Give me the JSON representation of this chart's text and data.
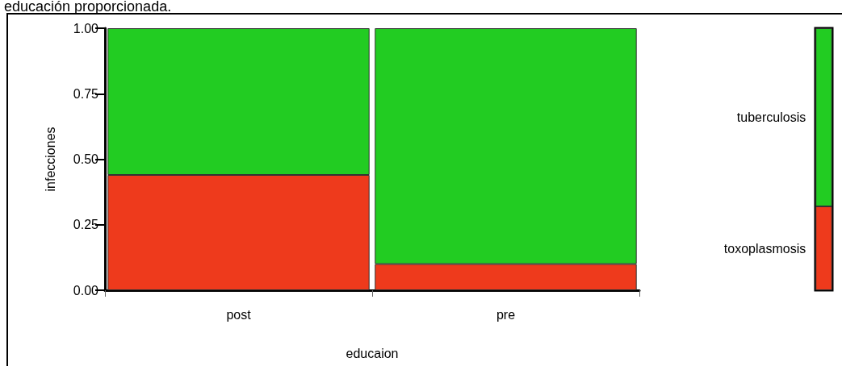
{
  "chart_data": [
    {
      "type": "bar",
      "title": "educación proporcionada.",
      "xlabel": "educaion",
      "ylabel": "infecciones",
      "categories": [
        "post",
        "pre"
      ],
      "stacked": true,
      "series": [
        {
          "color": "#ee3a1c",
          "values": [
            0.44,
            0.1
          ]
        },
        {
          "color": "#22cc22",
          "values": [
            0.56,
            0.9
          ]
        }
      ],
      "ylim": [
        0,
        1
      ],
      "yticks": [
        {
          "value": 0,
          "label": "0.00"
        },
        {
          "value": 0.25,
          "label": "0.25"
        },
        {
          "value": 0.5,
          "label": "0.50"
        },
        {
          "value": 0.75,
          "label": "0.75"
        },
        {
          "value": 1,
          "label": "1.00"
        }
      ],
      "grid": false,
      "legend": false
    },
    {
      "type": "bar",
      "categories": [
        null
      ],
      "stacked": true,
      "series": [
        {
          "name": "toxoplasmosis",
          "color": "#ee3a1c",
          "values": [
            0.32
          ]
        },
        {
          "name": "tuberculosis",
          "color": "#22cc22",
          "values": [
            0.68
          ]
        }
      ],
      "ylim": [
        0,
        1
      ],
      "grid": false,
      "legend": false
    }
  ]
}
